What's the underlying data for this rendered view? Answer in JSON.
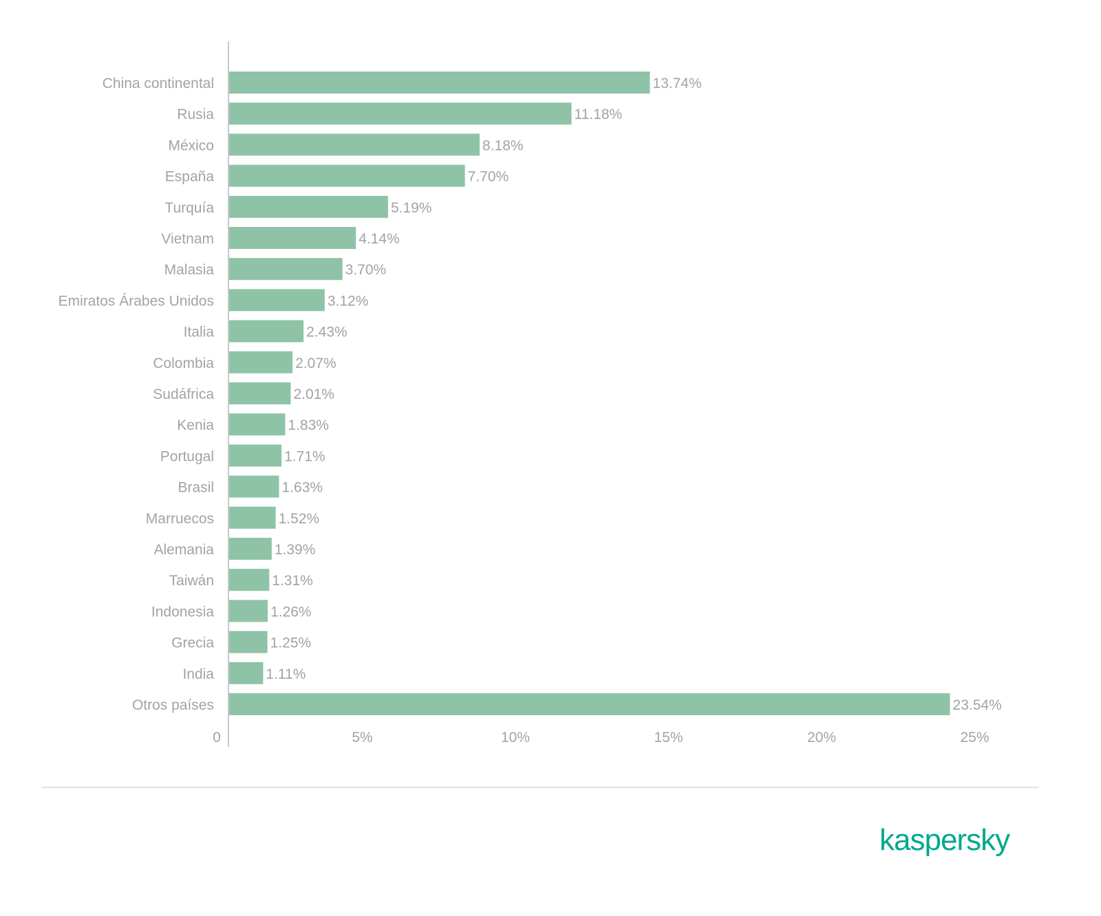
{
  "chart_data": {
    "type": "bar",
    "orientation": "horizontal",
    "categories": [
      "China continental",
      "Rusia",
      "México",
      "España",
      "Turquía",
      "Vietnam",
      "Malasia",
      "Emiratos Árabes Unidos",
      "Italia",
      "Colombia",
      "Sudáfrica",
      "Kenia",
      "Portugal",
      "Brasil",
      "Marruecos",
      "Alemania",
      "Taiwán",
      "Indonesia",
      "Grecia",
      "India",
      "Otros países"
    ],
    "values": [
      13.74,
      11.18,
      8.18,
      7.7,
      5.19,
      4.14,
      3.7,
      3.12,
      2.43,
      2.07,
      2.01,
      1.83,
      1.71,
      1.63,
      1.52,
      1.39,
      1.31,
      1.26,
      1.25,
      1.11,
      23.54
    ],
    "value_labels": [
      "13.74%",
      "11.18%",
      "8.18%",
      "7.70%",
      "5.19%",
      "4.14%",
      "3.70%",
      "3.12%",
      "2.43%",
      "2.07%",
      "2.01%",
      "1.83%",
      "1.71%",
      "1.63%",
      "1.52%",
      "1.39%",
      "1.31%",
      "1.26%",
      "1.25%",
      "1.11%",
      "23.54%"
    ],
    "xlim": [
      0,
      25
    ],
    "xticks": [
      0,
      5,
      10,
      15,
      20,
      25
    ],
    "xtick_labels": [
      "0",
      "5%",
      "10%",
      "15%",
      "20%",
      "25%"
    ],
    "grid": false,
    "bar_color": "#8fc3a7"
  },
  "brand": {
    "logo_text": "kaspersky",
    "color": "#00a88e"
  }
}
